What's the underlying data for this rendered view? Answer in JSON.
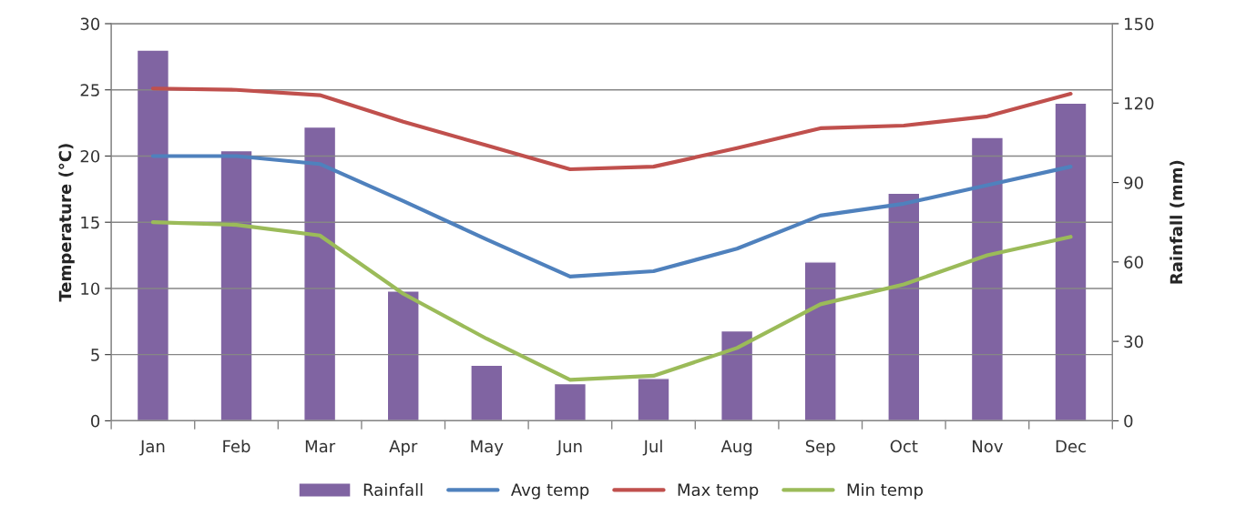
{
  "chart_data": {
    "type": "line",
    "ylabel": "Temperature (°C)",
    "y2label": "Rainfall (mm)",
    "categories": [
      "Jan",
      "Feb",
      "Mar",
      "Apr",
      "May",
      "Jun",
      "Jul",
      "Aug",
      "Sep",
      "Oct",
      "Nov",
      "Dec"
    ],
    "series": [
      {
        "name": "Rainfall",
        "type": "bar",
        "axis": "y2",
        "color": "#8064a2",
        "values": [
          140,
          102,
          111,
          49,
          21,
          14,
          16,
          34,
          60,
          86,
          107,
          120
        ]
      },
      {
        "name": "Avg temp",
        "color": "#4f81bd",
        "values": [
          20.0,
          20.0,
          19.4,
          16.6,
          13.7,
          10.9,
          11.3,
          13.0,
          15.5,
          16.4,
          17.8,
          19.2
        ]
      },
      {
        "name": "Max temp",
        "color": "#c0504d",
        "values": [
          25.1,
          25.0,
          24.6,
          22.6,
          20.8,
          19.0,
          19.2,
          20.6,
          22.1,
          22.3,
          23.0,
          24.7
        ]
      },
      {
        "name": "Min temp",
        "color": "#9bbb59",
        "values": [
          15.0,
          14.8,
          14.0,
          9.6,
          6.2,
          3.1,
          3.4,
          5.5,
          8.8,
          10.3,
          12.5,
          13.9
        ]
      }
    ],
    "ylim": [
      0,
      30
    ],
    "yticks": [
      0,
      5,
      10,
      15,
      20,
      25,
      30
    ],
    "y2lim": [
      0,
      150
    ],
    "y2ticks": [
      0,
      30,
      60,
      90,
      120,
      150
    ],
    "grid": "y",
    "legend": "bottom",
    "marker": "none",
    "line_style": "solid"
  }
}
